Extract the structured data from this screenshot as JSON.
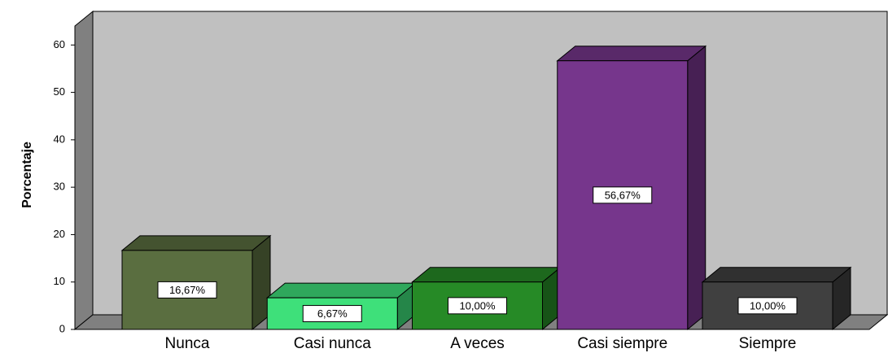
{
  "chart_data": {
    "type": "bar3d",
    "ylabel": "Porcentaje",
    "categories": [
      "Nunca",
      "Casi nunca",
      "A veces",
      "Casi siempre",
      "Siempre"
    ],
    "values": [
      16.67,
      6.67,
      10,
      56.67,
      10
    ],
    "value_labels": [
      "16,67%",
      "6,67%",
      "10,00%",
      "56,67%",
      "10,00%"
    ],
    "colors": [
      "#5a6e40",
      "#3ee07a",
      "#268a26",
      "#76368c",
      "#404040"
    ],
    "ylim": [
      0,
      64
    ],
    "yticks": [
      0,
      10,
      20,
      30,
      40,
      50,
      60
    ]
  }
}
